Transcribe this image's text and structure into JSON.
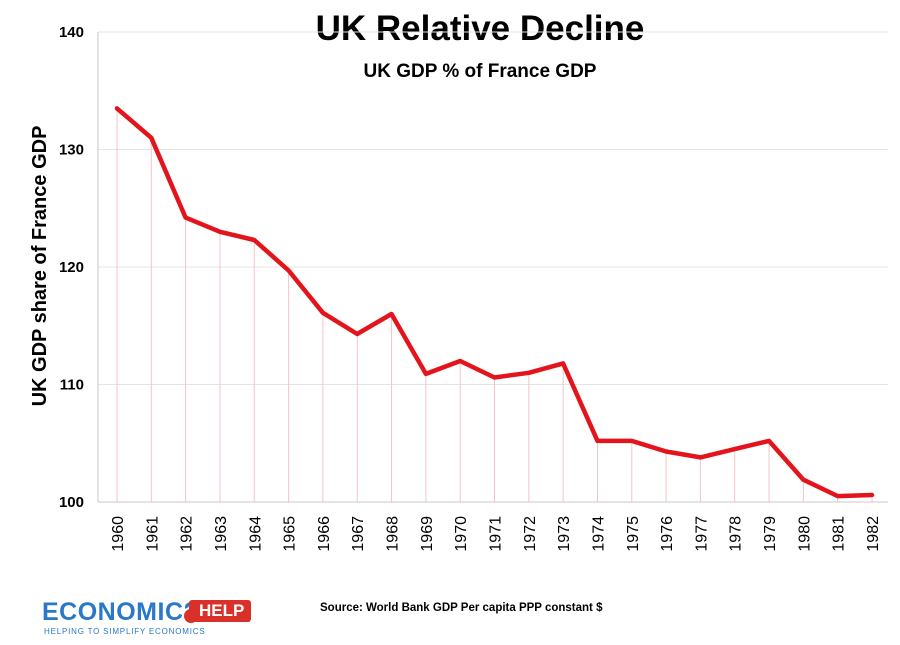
{
  "chart_data": {
    "type": "line",
    "title": "UK Relative Decline",
    "subtitle": "UK GDP % of France GDP",
    "ylabel": "UK GDP share of France GDP",
    "xlabel": "",
    "ylim": [
      100,
      140
    ],
    "yticks": [
      100,
      110,
      120,
      130,
      140
    ],
    "grid": true,
    "series": [
      {
        "name": "UK GDP % of France GDP",
        "color": "#e3141b",
        "x": [
          "1960",
          "1961",
          "1962",
          "1963",
          "1964",
          "1965",
          "1966",
          "1967",
          "1968",
          "1969",
          "1970",
          "1971",
          "1972",
          "1973",
          "1974",
          "1975",
          "1976",
          "1977",
          "1978",
          "1979",
          "1980",
          "1981",
          "1982"
        ],
        "values": [
          133.5,
          131.0,
          124.2,
          123.0,
          122.3,
          119.7,
          116.1,
          114.3,
          116.0,
          110.9,
          112.0,
          110.6,
          111.0,
          111.8,
          105.2,
          105.2,
          104.3,
          103.8,
          104.5,
          105.2,
          101.9,
          100.5,
          100.6
        ]
      }
    ]
  },
  "logo": {
    "word": "ECONOMICS",
    "badge": "HELP",
    "tagline": "HELPING TO SIMPLIFY ECONOMICS"
  },
  "source": "Source: World Bank GDP Per capita PPP constant $"
}
